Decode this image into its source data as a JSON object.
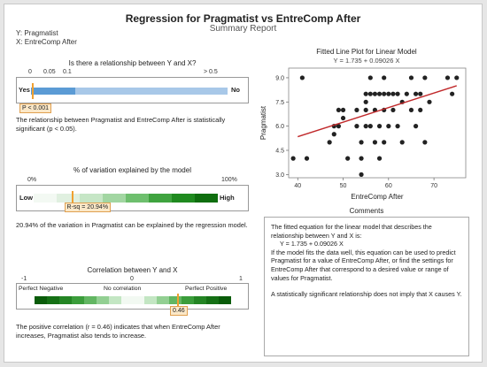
{
  "header": {
    "title": "Regression for Pragmatist vs EntreComp After",
    "subtitle": "Summary Report",
    "y_var": "Y: Pragmatist",
    "x_var": "X: EntreComp After"
  },
  "relationship": {
    "title": "Is there a relationship between Y and X?",
    "ticks": [
      "0",
      "0.05",
      "0.1",
      "> 0.5"
    ],
    "left_label": "Yes",
    "right_label": "No",
    "p_tag": "P < 0.001",
    "text": "The relationship between Pragmatist and EntreComp After is statistically significant (p < 0.05)."
  },
  "variation": {
    "title": "% of variation explained by the model",
    "ticks": [
      "0%",
      "100%"
    ],
    "left_label": "Low",
    "right_label": "High",
    "r_sq": 20.94,
    "tag": "R-sq = 20.94%",
    "text": "20.94% of the variation in Pragmatist can be explained by the regression model."
  },
  "correlation": {
    "title": "Correlation between Y and X",
    "ticks": [
      "-1",
      "0",
      "1"
    ],
    "labels": [
      "Perfect Negative",
      "No correlation",
      "Perfect Positive"
    ],
    "r": 0.46,
    "tag": "0.46",
    "text": "The positive correlation (r = 0.46) indicates that when EntreComp After increases, Pragmatist also tends to increase."
  },
  "fitted": {
    "title": "Fitted Line Plot for Linear Model",
    "equation": "Y = 1.735 + 0.09026 X"
  },
  "comments": {
    "title": "Comments",
    "p1": "The fitted equation for the linear model that describes the relationship between Y and X is:",
    "eq": "Y = 1.735 + 0.09026 X",
    "p2": "If the model fits the data well, this equation can be used to predict Pragmatist for a value of EntreComp After, or find the settings for EntreComp After that correspond to a desired value or range of values for Pragmatist.",
    "p3": "A statistically significant relationship does not imply that X causes Y."
  },
  "chart_data": {
    "type": "scatter",
    "title": "Fitted Line Plot for Linear Model",
    "subtitle": "Y = 1.735 + 0.09026 X",
    "xlabel": "EntreComp After",
    "ylabel": "Pragmatist",
    "xlim": [
      38,
      77
    ],
    "ylim": [
      2.8,
      9.6
    ],
    "xticks": [
      40,
      50,
      60,
      70
    ],
    "yticks": [
      3.0,
      4.5,
      6.0,
      7.5,
      9.0
    ],
    "grid": false,
    "points": [
      [
        39,
        4
      ],
      [
        41,
        9
      ],
      [
        42,
        4
      ],
      [
        47,
        5
      ],
      [
        48,
        6
      ],
      [
        48,
        5.5
      ],
      [
        49,
        6
      ],
      [
        49,
        7
      ],
      [
        50,
        7
      ],
      [
        50,
        6.5
      ],
      [
        51,
        4
      ],
      [
        53,
        6
      ],
      [
        53,
        7
      ],
      [
        54,
        3
      ],
      [
        54,
        5
      ],
      [
        54,
        4
      ],
      [
        55,
        6
      ],
      [
        55,
        7
      ],
      [
        55,
        7.5
      ],
      [
        55,
        8
      ],
      [
        56,
        8
      ],
      [
        56,
        9
      ],
      [
        56,
        6
      ],
      [
        57,
        8
      ],
      [
        57,
        7
      ],
      [
        57,
        5
      ],
      [
        58,
        8
      ],
      [
        58,
        6
      ],
      [
        58,
        4
      ],
      [
        59,
        8
      ],
      [
        59,
        9
      ],
      [
        59,
        7
      ],
      [
        59,
        5
      ],
      [
        60,
        8
      ],
      [
        60,
        6
      ],
      [
        61,
        8
      ],
      [
        61,
        7
      ],
      [
        62,
        8
      ],
      [
        62,
        6
      ],
      [
        63,
        7.5
      ],
      [
        63,
        5
      ],
      [
        64,
        8
      ],
      [
        65,
        9
      ],
      [
        65,
        7
      ],
      [
        66,
        8
      ],
      [
        66,
        6
      ],
      [
        67,
        7
      ],
      [
        67,
        8
      ],
      [
        68,
        9
      ],
      [
        68,
        5
      ],
      [
        69,
        7.5
      ],
      [
        73,
        9
      ],
      [
        74,
        8
      ],
      [
        75,
        9
      ]
    ],
    "fit": {
      "intercept": 1.735,
      "slope": 0.09026,
      "color": "#c0282a"
    },
    "point_color": "#222222"
  },
  "colors": {
    "bar_light": "#a8c8e8",
    "bar_dark": "#5b9bd5",
    "marker": "#f0a030",
    "green_dark": "#1a7a1a"
  }
}
